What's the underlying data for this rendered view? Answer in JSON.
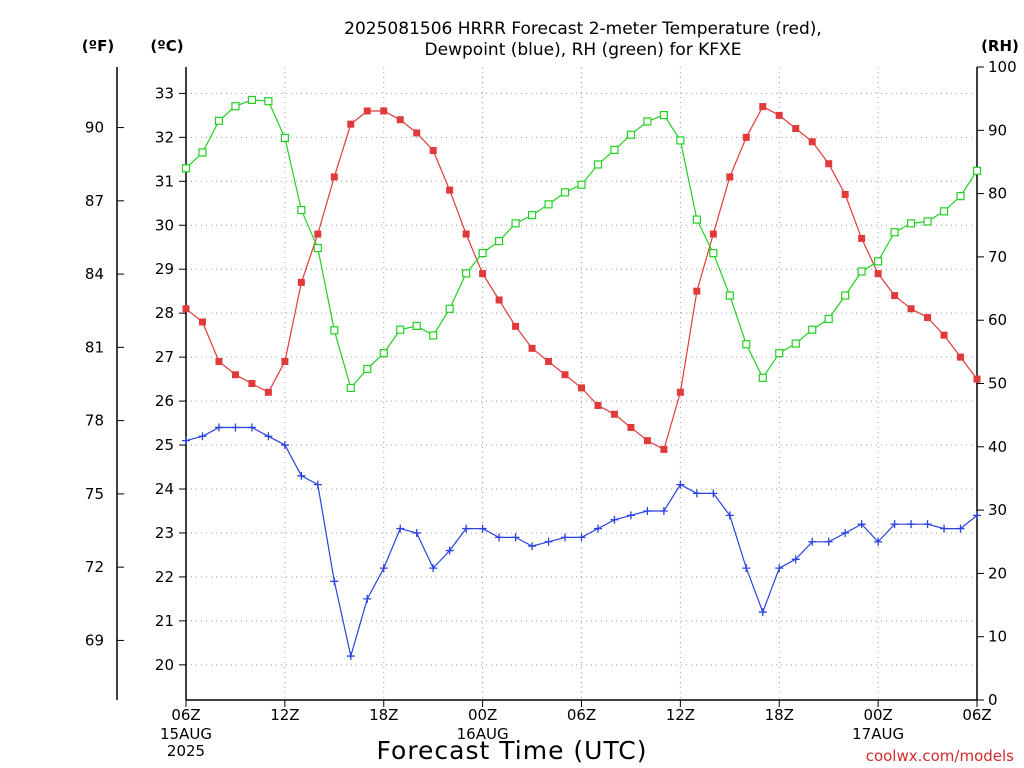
{
  "colors": {
    "temperature": "#e03a3a",
    "dewpoint": "#2a43e0",
    "rh": "#22d022",
    "credit": "#d22a2a"
  },
  "chart_data": {
    "type": "line",
    "title_line1": "2025081506 HRRR Forecast 2-meter Temperature (red),",
    "title_line2": "Dewpoint (blue), RH (green) for KFXE",
    "xlabel": "Forecast Time (UTC)",
    "credit": "coolwx.com/models",
    "unit_f": "(ºF)",
    "unit_c": "(ºC)",
    "unit_rh": "(RH)",
    "grid": true,
    "x": [
      "2025-08-15 06Z",
      "07Z",
      "08Z",
      "09Z",
      "10Z",
      "11Z",
      "12Z",
      "13Z",
      "14Z",
      "15Z",
      "16Z",
      "17Z",
      "18Z",
      "19Z",
      "20Z",
      "21Z",
      "22Z",
      "23Z",
      "2025-08-16 00Z",
      "01Z",
      "02Z",
      "03Z",
      "04Z",
      "05Z",
      "06Z",
      "07Z",
      "08Z",
      "09Z",
      "10Z",
      "11Z",
      "12Z",
      "13Z",
      "14Z",
      "15Z",
      "16Z",
      "17Z",
      "18Z",
      "19Z",
      "20Z",
      "21Z",
      "22Z",
      "23Z",
      "2025-08-17 00Z",
      "01Z",
      "02Z",
      "03Z",
      "04Z",
      "05Z",
      "06Z"
    ],
    "x_ticks": [
      {
        "label": "06Z",
        "sub1": "15AUG",
        "sub2": "2025"
      },
      {
        "label": "12Z",
        "sub1": "",
        "sub2": ""
      },
      {
        "label": "18Z",
        "sub1": "",
        "sub2": ""
      },
      {
        "label": "00Z",
        "sub1": "16AUG",
        "sub2": ""
      },
      {
        "label": "06Z",
        "sub1": "",
        "sub2": ""
      },
      {
        "label": "12Z",
        "sub1": "",
        "sub2": ""
      },
      {
        "label": "18Z",
        "sub1": "",
        "sub2": ""
      },
      {
        "label": "00Z",
        "sub1": "17AUG",
        "sub2": ""
      },
      {
        "label": "06Z",
        "sub1": "",
        "sub2": ""
      }
    ],
    "ylim_c": [
      19.2,
      33.6
    ],
    "y_ticks_c": [
      "20",
      "21",
      "22",
      "23",
      "24",
      "25",
      "26",
      "27",
      "28",
      "29",
      "30",
      "31",
      "32",
      "33"
    ],
    "y_ticks_f": [
      "69",
      "72",
      "75",
      "78",
      "81",
      "84",
      "87",
      "90"
    ],
    "ylim_rh": [
      0,
      100
    ],
    "y_ticks_rh": [
      "0",
      "10",
      "20",
      "30",
      "40",
      "50",
      "60",
      "70",
      "80",
      "90",
      "100"
    ],
    "series": [
      {
        "key": "temperature",
        "marker": "filled-square",
        "values": [
          28.1,
          27.8,
          26.9,
          26.6,
          26.4,
          26.2,
          26.9,
          28.7,
          29.8,
          31.1,
          32.3,
          32.6,
          32.6,
          32.4,
          32.1,
          31.7,
          30.8,
          29.8,
          28.9,
          28.3,
          27.7,
          27.2,
          26.9,
          26.6,
          26.3,
          25.9,
          25.7,
          25.4,
          25.1,
          24.9,
          26.2,
          28.5,
          29.8,
          31.1,
          32.0,
          32.7,
          32.5,
          32.2,
          31.9,
          31.4,
          30.7,
          29.7,
          28.9,
          28.4,
          28.1,
          27.9,
          27.5,
          27.0,
          26.5
        ]
      },
      {
        "key": "dewpoint",
        "marker": "plus",
        "values": [
          25.1,
          25.2,
          25.4,
          25.4,
          25.4,
          25.2,
          25.0,
          24.3,
          24.1,
          21.9,
          20.2,
          21.5,
          22.2,
          23.1,
          23.0,
          22.2,
          22.6,
          23.1,
          23.1,
          22.9,
          22.9,
          22.7,
          22.8,
          22.9,
          22.9,
          23.1,
          23.3,
          23.4,
          23.5,
          23.5,
          24.1,
          23.9,
          23.9,
          23.4,
          22.2,
          21.2,
          22.2,
          22.4,
          22.8,
          22.8,
          23.0,
          23.2,
          22.8,
          23.2,
          23.2,
          23.2,
          23.1,
          23.1,
          23.4
        ]
      },
      {
        "key": "rh",
        "marker": "open-square",
        "values": [
          84,
          86.5,
          91.5,
          93.8,
          94.8,
          94.6,
          88.8,
          77.4,
          71.4,
          58.4,
          49.3,
          52.3,
          54.8,
          58.5,
          59.1,
          57.6,
          61.8,
          67.4,
          70.6,
          72.5,
          75.3,
          76.6,
          78.3,
          80.2,
          81.4,
          84.6,
          86.9,
          89.3,
          91.4,
          92.4,
          88.4,
          75.9,
          70.6,
          63.9,
          56.2,
          50.9,
          54.8,
          56.3,
          58.5,
          60.2,
          63.9,
          67.7,
          69.3,
          73.9,
          75.3,
          75.6,
          77.2,
          79.6,
          83.6
        ]
      }
    ]
  }
}
